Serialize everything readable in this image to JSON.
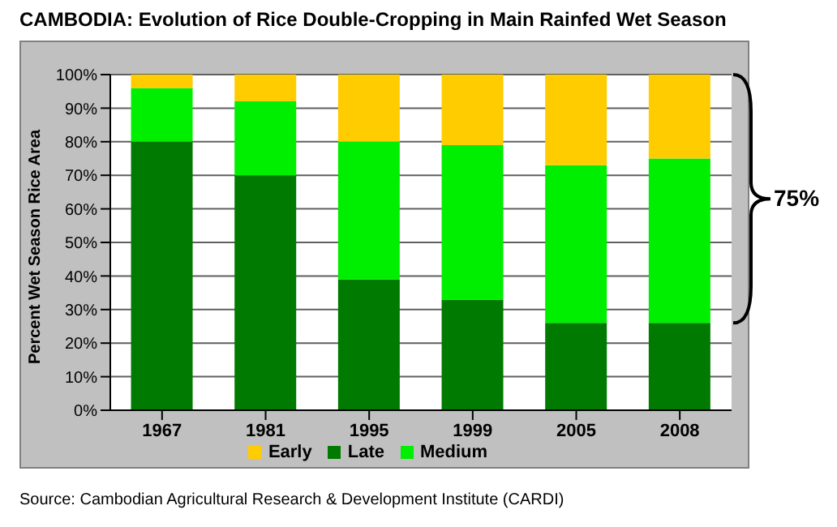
{
  "chart_data": {
    "type": "bar",
    "title": "CAMBODIA: Evolution of Rice Double-Cropping in Main Rainfed Wet Season",
    "ylabel": "Percent Wet Season Rice Area",
    "categories": [
      "1967",
      "1981",
      "1995",
      "1999",
      "2005",
      "2008"
    ],
    "stacked": true,
    "series": [
      {
        "name": "Late",
        "color": "#007a00",
        "values": [
          80,
          70,
          39,
          33,
          26,
          26
        ]
      },
      {
        "name": "Medium",
        "color": "#00ee00",
        "values": [
          16,
          22,
          41,
          46,
          47,
          49
        ]
      },
      {
        "name": "Early",
        "color": "#ffcc00",
        "values": [
          4,
          8,
          20,
          21,
          27,
          25
        ]
      }
    ],
    "ylim": [
      0,
      100
    ],
    "yticks": [
      {
        "value": 0,
        "label": "0%"
      },
      {
        "value": 10,
        "label": "10%"
      },
      {
        "value": 20,
        "label": "20%"
      },
      {
        "value": 30,
        "label": "30%"
      },
      {
        "value": 40,
        "label": "40%"
      },
      {
        "value": 50,
        "label": "50%"
      },
      {
        "value": 60,
        "label": "60%"
      },
      {
        "value": 70,
        "label": "70%"
      },
      {
        "value": 80,
        "label": "80%"
      },
      {
        "value": 90,
        "label": "90%"
      },
      {
        "value": 100,
        "label": "100%"
      }
    ],
    "grid": "y",
    "legend": "bottom",
    "annotations": [
      "75%",
      "Source: Cambodian Agricultural Research & Development Institute (CARDI)"
    ]
  }
}
